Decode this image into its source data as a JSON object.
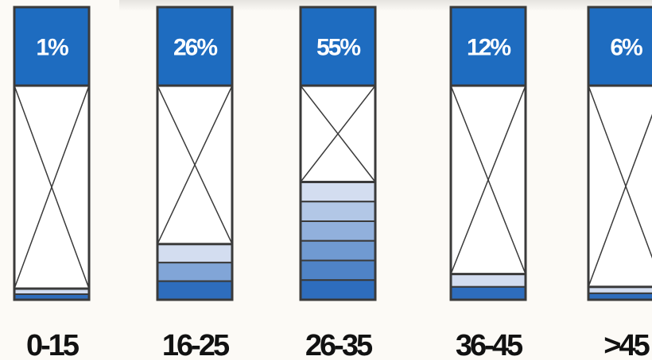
{
  "chart_data": {
    "type": "bar",
    "categories": [
      "0-15",
      "16-25",
      "26-35",
      "36-45",
      ">45"
    ],
    "values": [
      1,
      26,
      55,
      12,
      6
    ],
    "value_labels": [
      "1%",
      "26%",
      "55%",
      "12%",
      "6%"
    ],
    "ylim": [
      0,
      100
    ],
    "title": "",
    "xlabel": "",
    "ylabel": "",
    "grid": false,
    "legend": "none"
  },
  "colors": {
    "header_fill": "#1e6cc0",
    "header_text": "#ffffff",
    "outline": "#3a3a3a",
    "stripe_light": "#d3ddf0",
    "stripe_dark": "#2e6dbd",
    "category_text": "#111111",
    "background": "#fcfaf6"
  }
}
